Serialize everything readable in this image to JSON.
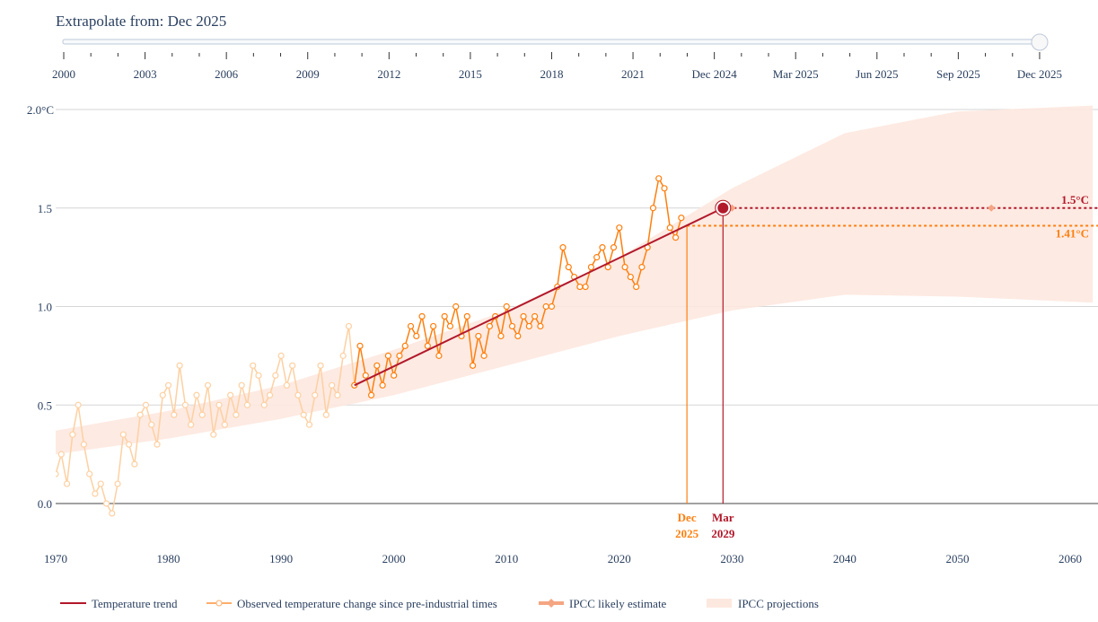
{
  "slider": {
    "label_prefix": "Extrapolate from: ",
    "current_value": "Dec 2025",
    "ticks": [
      "2000",
      "2003",
      "2006",
      "2009",
      "2012",
      "2015",
      "2018",
      "2021",
      "Dec 2024",
      "Mar 2025",
      "Jun 2025",
      "Sep 2025",
      "Dec 2025"
    ],
    "selected_index": 12
  },
  "chart_data": {
    "type": "line",
    "x_ticks": [
      1970,
      1980,
      1990,
      2000,
      2010,
      2020,
      2030,
      2040,
      2050,
      2060
    ],
    "y_ticks": [
      "0.0",
      "0.5",
      "1.0",
      "1.5",
      "2.0°C"
    ],
    "y_tick_values": [
      0,
      0.5,
      1,
      1.5,
      2
    ],
    "xlim": [
      1970,
      2062
    ],
    "ylim": [
      -0.2,
      2.0
    ],
    "grid": true,
    "legend_placement": "bottom",
    "colors": {
      "trend": "#b2182b",
      "observed": "#ff7f0e",
      "observed_faded": "#fdd0a2",
      "ipcc_estimate": "#f4a582",
      "ipcc_band": "#fde8df"
    },
    "observed": {
      "name": "Observed temperature change since pre-industrial times",
      "x_start": 1970,
      "x_step_years": 0.5,
      "highlight_from": 1996.5,
      "values": [
        0.15,
        0.25,
        0.1,
        0.35,
        0.5,
        0.3,
        0.15,
        0.05,
        0.1,
        0.0,
        -0.05,
        0.1,
        0.35,
        0.3,
        0.2,
        0.45,
        0.5,
        0.4,
        0.3,
        0.55,
        0.6,
        0.45,
        0.7,
        0.5,
        0.4,
        0.55,
        0.45,
        0.6,
        0.35,
        0.5,
        0.4,
        0.55,
        0.45,
        0.6,
        0.5,
        0.7,
        0.65,
        0.5,
        0.55,
        0.65,
        0.75,
        0.6,
        0.7,
        0.55,
        0.45,
        0.4,
        0.55,
        0.7,
        0.45,
        0.6,
        0.55,
        0.75,
        0.9,
        0.6,
        0.8,
        0.65,
        0.55,
        0.7,
        0.6,
        0.75,
        0.65,
        0.75,
        0.8,
        0.9,
        0.85,
        0.95,
        0.8,
        0.9,
        0.75,
        0.95,
        0.9,
        1.0,
        0.85,
        0.95,
        0.7,
        0.85,
        0.75,
        0.9,
        0.95,
        0.85,
        1.0,
        0.9,
        0.85,
        0.95,
        0.9,
        0.95,
        0.9,
        1.0,
        1.0,
        1.1,
        1.3,
        1.2,
        1.15,
        1.1,
        1.1,
        1.2,
        1.25,
        1.3,
        1.2,
        1.3,
        1.4,
        1.2,
        1.15,
        1.1,
        1.2,
        1.3,
        1.5,
        1.65,
        1.6,
        1.4,
        1.35,
        1.45
      ]
    },
    "trend": {
      "name": "Temperature trend",
      "x": [
        1996.5,
        2029.2
      ],
      "y": [
        0.6,
        1.5
      ]
    },
    "ipcc_estimate": {
      "name": "IPCC likely estimate",
      "y": 1.5,
      "markers_x": [
        2030,
        2053
      ]
    },
    "ipcc_band": {
      "name": "IPCC projections",
      "x": [
        1970,
        1980,
        1990,
        2000,
        2010,
        2020,
        2030,
        2040,
        2050,
        2062
      ],
      "lower": [
        0.25,
        0.33,
        0.43,
        0.55,
        0.7,
        0.85,
        0.98,
        1.06,
        1.05,
        1.02
      ],
      "upper": [
        0.37,
        0.47,
        0.6,
        0.78,
        0.98,
        1.25,
        1.6,
        1.88,
        1.99,
        2.02
      ]
    },
    "markers": [
      {
        "label_line1": "Dec",
        "label_line2": "2025",
        "x": 2026.0,
        "y": 1.41,
        "value_label": "1.41°C",
        "color": "#ff7f0e"
      },
      {
        "label_line1": "Mar",
        "label_line2": "2029",
        "x": 2029.2,
        "y": 1.5,
        "value_label": "1.5°C",
        "color": "#b2182b"
      }
    ]
  }
}
